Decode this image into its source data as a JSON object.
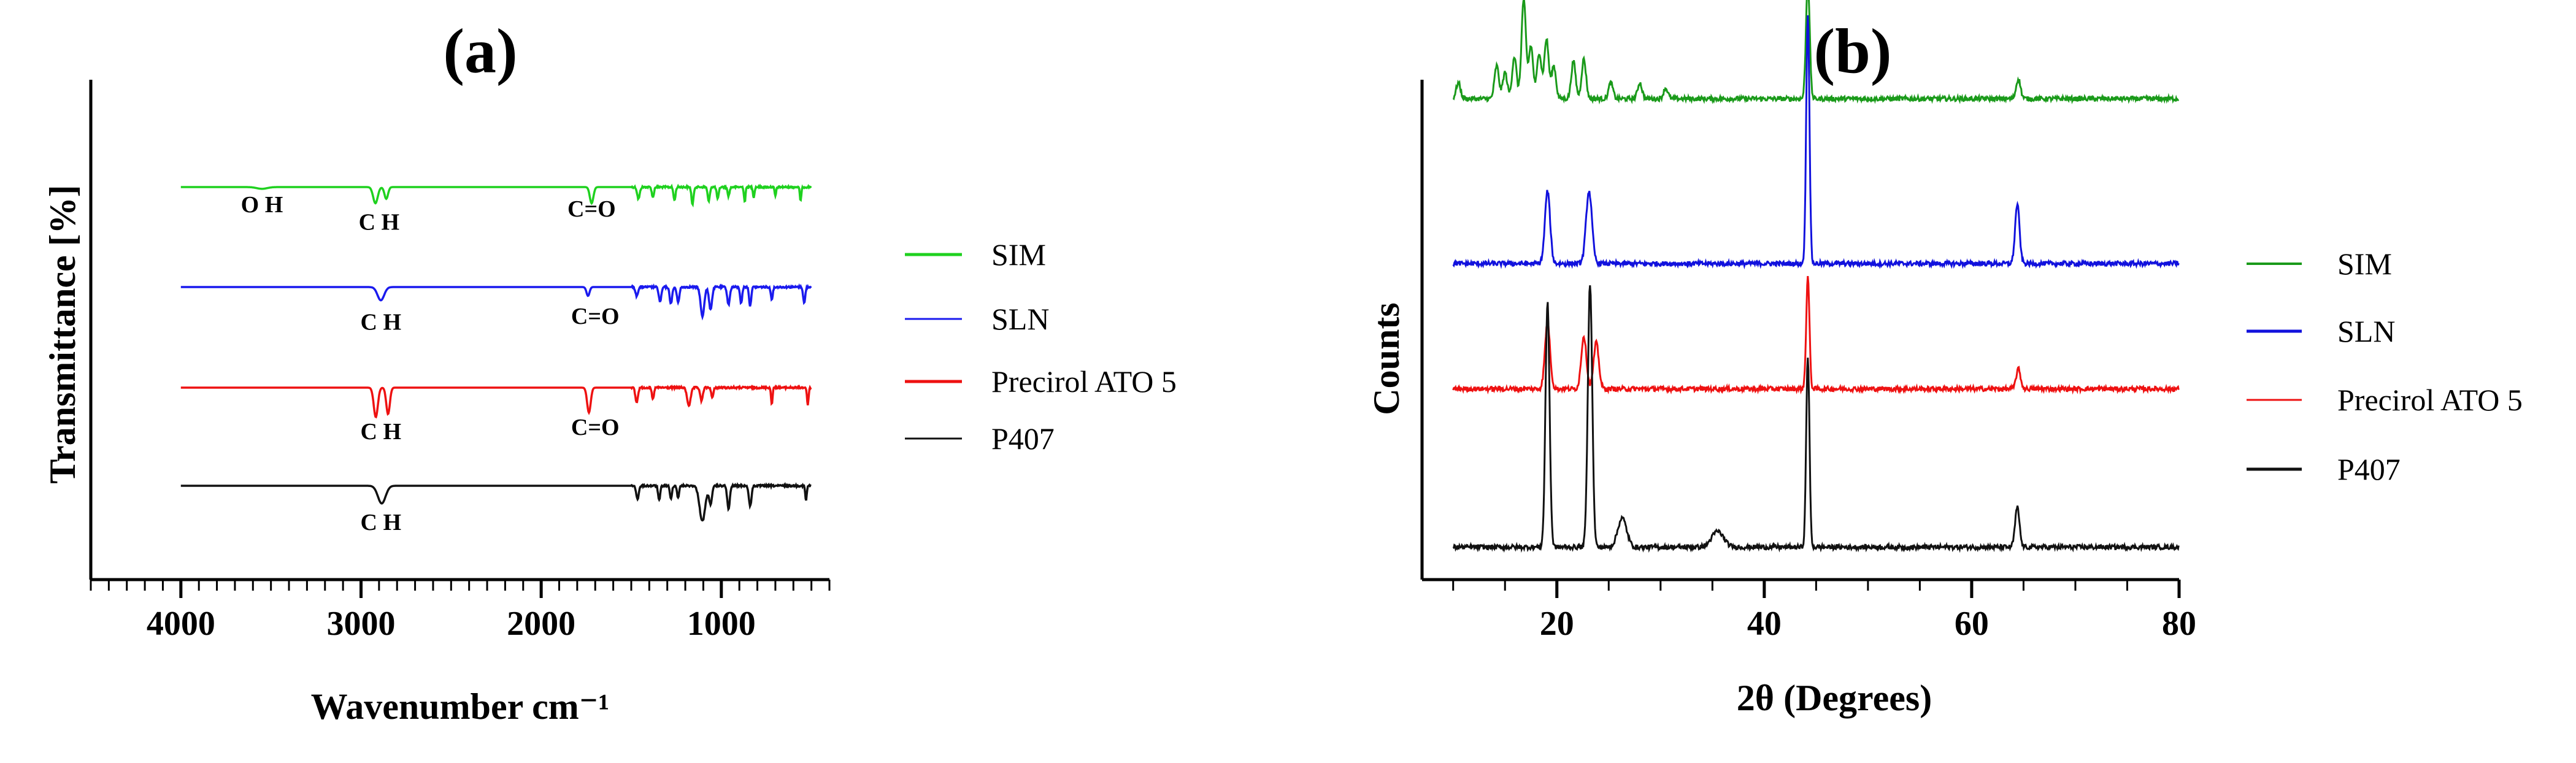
{
  "chart_data": [
    {
      "type": "line",
      "panel_label": "(a)",
      "title": "(a)",
      "xlabel": "Wavenumber cm⁻¹",
      "ylabel": "Transmittance [%]",
      "xlim": [
        4500,
        400
      ],
      "x_reversed": true,
      "x_ticks": [
        4000,
        3000,
        2000,
        1000
      ],
      "x_tick_labels": [
        "4000",
        "3000",
        "2000",
        "1000"
      ],
      "y_ticks_shown": false,
      "series": [
        {
          "name": "SIM",
          "color": "#1fd11f",
          "offset": 3,
          "peaks": [
            [
              3550,
              0.06,
              40
            ],
            [
              2920,
              0.55,
              18
            ],
            [
              2860,
              0.4,
              14
            ],
            [
              1720,
              0.55,
              14
            ],
            [
              1460,
              0.4,
              10
            ],
            [
              1380,
              0.35,
              8
            ],
            [
              1260,
              0.45,
              8
            ],
            [
              1160,
              0.6,
              8
            ],
            [
              1070,
              0.5,
              8
            ],
            [
              1020,
              0.4,
              8
            ],
            [
              960,
              0.3,
              8
            ],
            [
              870,
              0.5,
              6
            ],
            [
              820,
              0.35,
              6
            ],
            [
              700,
              0.3,
              6
            ],
            [
              560,
              0.45,
              6
            ]
          ]
        },
        {
          "name": "SLN",
          "color": "#1a1aee",
          "offset": 2,
          "peaks": [
            [
              2890,
              0.45,
              26
            ],
            [
              1740,
              0.3,
              12
            ],
            [
              1470,
              0.3,
              10
            ],
            [
              1340,
              0.5,
              10
            ],
            [
              1280,
              0.55,
              10
            ],
            [
              1240,
              0.5,
              10
            ],
            [
              1105,
              1.0,
              14
            ],
            [
              1060,
              0.75,
              12
            ],
            [
              960,
              0.6,
              10
            ],
            [
              890,
              0.55,
              8
            ],
            [
              840,
              0.65,
              8
            ],
            [
              720,
              0.4,
              8
            ],
            [
              540,
              0.55,
              8
            ]
          ]
        },
        {
          "name": "Precirol ATO 5",
          "color": "#ee1111",
          "offset": 1,
          "peaks": [
            [
              2918,
              1.0,
              16
            ],
            [
              2850,
              0.9,
              14
            ],
            [
              1735,
              0.85,
              14
            ],
            [
              1470,
              0.5,
              10
            ],
            [
              1380,
              0.4,
              8
            ],
            [
              1180,
              0.6,
              14
            ],
            [
              1110,
              0.45,
              10
            ],
            [
              1050,
              0.35,
              8
            ],
            [
              720,
              0.55,
              6
            ],
            [
              520,
              0.6,
              6
            ]
          ]
        },
        {
          "name": "P407",
          "color": "#111111",
          "offset": 0,
          "peaks": [
            [
              2885,
              0.6,
              30
            ],
            [
              1465,
              0.45,
              10
            ],
            [
              1345,
              0.5,
              8
            ],
            [
              1280,
              0.45,
              8
            ],
            [
              1240,
              0.4,
              8
            ],
            [
              1105,
              1.2,
              22
            ],
            [
              1060,
              0.6,
              12
            ],
            [
              960,
              0.8,
              10
            ],
            [
              840,
              0.7,
              10
            ],
            [
              530,
              0.5,
              6
            ]
          ]
        }
      ],
      "annotations": [
        {
          "text": "O H",
          "x": 3550,
          "series": "SIM",
          "below": 0.35
        },
        {
          "text": "C H",
          "x": 2900,
          "series": "SIM",
          "below": 0.95
        },
        {
          "text": "C=O",
          "x": 1720,
          "series": "SIM",
          "below": 0.5
        },
        {
          "text": "C H",
          "x": 2890,
          "series": "SLN",
          "below": 0.95
        },
        {
          "text": "C=O",
          "x": 1700,
          "series": "SLN",
          "below": 0.75
        },
        {
          "text": "C H",
          "x": 2890,
          "series": "Precirol ATO 5",
          "below": 1.25
        },
        {
          "text": "C=O",
          "x": 1700,
          "series": "Precirol ATO 5",
          "below": 1.1
        },
        {
          "text": "C H",
          "x": 2890,
          "series": "P407",
          "below": 1.0
        }
      ],
      "legend": {
        "placement": "right",
        "entries": [
          "SIM",
          "SLN",
          "Precirol ATO 5",
          "P407"
        ]
      }
    },
    {
      "type": "line",
      "panel_label": "(b)",
      "title": "(b)",
      "xlabel": "2θ (Degrees)",
      "ylabel": "Counts",
      "xlim": [
        7,
        80
      ],
      "x_ticks": [
        20,
        40,
        60,
        80
      ],
      "x_tick_labels": [
        "20",
        "40",
        "60",
        "80"
      ],
      "y_ticks_shown": false,
      "series": [
        {
          "name": "SIM",
          "color": "#1a9a1a",
          "baseline": 3.6,
          "peaks": [
            [
              10.5,
              0.12,
              0.3
            ],
            [
              14.2,
              0.25,
              0.3
            ],
            [
              15.0,
              0.2,
              0.3
            ],
            [
              15.9,
              0.32,
              0.3
            ],
            [
              16.8,
              0.75,
              0.3
            ],
            [
              17.5,
              0.4,
              0.3
            ],
            [
              18.3,
              0.35,
              0.3
            ],
            [
              19.0,
              0.45,
              0.3
            ],
            [
              19.7,
              0.25,
              0.3
            ],
            [
              21.6,
              0.28,
              0.3
            ],
            [
              22.6,
              0.3,
              0.3
            ],
            [
              25.2,
              0.12,
              0.3
            ],
            [
              28.0,
              0.12,
              0.3
            ],
            [
              30.5,
              0.08,
              0.3
            ],
            [
              44.2,
              0.9,
              0.25
            ],
            [
              64.5,
              0.15,
              0.3
            ]
          ]
        },
        {
          "name": "SLN",
          "color": "#1111dd",
          "baseline": 2.35,
          "peaks": [
            [
              19.1,
              0.55,
              0.35
            ],
            [
              23.1,
              0.55,
              0.4
            ],
            [
              44.2,
              1.9,
              0.22
            ],
            [
              64.4,
              0.45,
              0.3
            ]
          ]
        },
        {
          "name": "Precirol ATO 5",
          "color": "#ee1111",
          "baseline": 1.4,
          "peaks": [
            [
              19.1,
              0.5,
              0.35
            ],
            [
              22.6,
              0.4,
              0.35
            ],
            [
              23.8,
              0.35,
              0.35
            ],
            [
              44.2,
              0.85,
              0.22
            ],
            [
              64.5,
              0.15,
              0.3
            ]
          ]
        },
        {
          "name": "P407",
          "color": "#111111",
          "baseline": 0.2,
          "peaks": [
            [
              19.1,
              1.85,
              0.28
            ],
            [
              23.2,
              2.0,
              0.3
            ],
            [
              26.3,
              0.22,
              0.6
            ],
            [
              35.5,
              0.12,
              0.8
            ],
            [
              44.2,
              1.45,
              0.22
            ],
            [
              64.4,
              0.3,
              0.3
            ]
          ]
        }
      ],
      "legend": {
        "placement": "right",
        "entries": [
          "SIM",
          "SLN",
          "Precirol ATO 5",
          "P407"
        ]
      }
    }
  ]
}
